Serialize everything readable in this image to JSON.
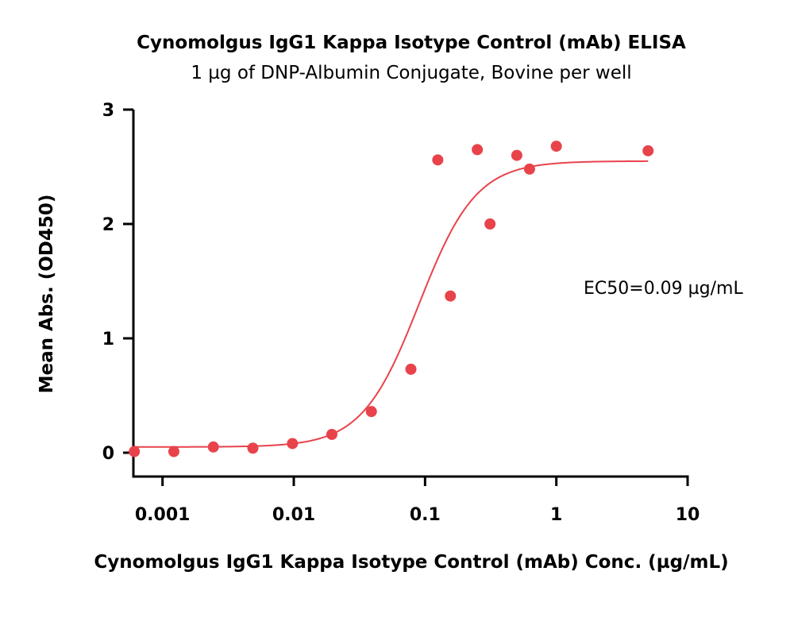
{
  "chart_data": {
    "type": "scatter",
    "title": "Cynomolgus IgG1 Kappa Isotype Control (mAb) ELISA",
    "subtitle": "1 µg of DNP-Albumin Conjugate, Bovine per well",
    "xlabel": "Cynomolgus IgG1 Kappa Isotype Control (mAb) Conc. (µg/mL)",
    "ylabel": "Mean Abs. (OD450)",
    "xscale": "log",
    "xlim": [
      0.0006,
      10
    ],
    "ylim": [
      0,
      3
    ],
    "xticks": [
      0.001,
      0.01,
      0.1,
      1,
      10
    ],
    "xtick_labels": [
      "0.001",
      "0.01",
      "0.1",
      "1",
      "10"
    ],
    "yticks": [
      0,
      1,
      2,
      3
    ],
    "ytick_labels": [
      "0",
      "1",
      "2",
      "3"
    ],
    "grid": false,
    "legend": "none",
    "annotation": "EC50=0.09 µg/mL",
    "color": "#e8434b",
    "points": [
      {
        "x": 0.00061,
        "y": 0.01
      },
      {
        "x": 0.00122,
        "y": 0.01
      },
      {
        "x": 0.00244,
        "y": 0.05
      },
      {
        "x": 0.00488,
        "y": 0.04
      },
      {
        "x": 0.00977,
        "y": 0.08
      },
      {
        "x": 0.0195,
        "y": 0.16
      },
      {
        "x": 0.039,
        "y": 0.36
      },
      {
        "x": 0.078,
        "y": 0.73
      },
      {
        "x": 0.125,
        "y": 2.56
      },
      {
        "x": 0.156,
        "y": 1.37
      },
      {
        "x": 0.25,
        "y": 2.65
      },
      {
        "x": 0.3125,
        "y": 2.0
      },
      {
        "x": 0.5,
        "y": 2.6
      },
      {
        "x": 0.625,
        "y": 2.48
      },
      {
        "x": 1.0,
        "y": 2.68
      },
      {
        "x": 5.0,
        "y": 2.64
      }
    ],
    "fit": {
      "model": "4PL",
      "bottom": 0.05,
      "top": 2.55,
      "ec50": 0.09,
      "hill": 2.0,
      "x_range": [
        0.0006,
        5.0
      ]
    }
  }
}
